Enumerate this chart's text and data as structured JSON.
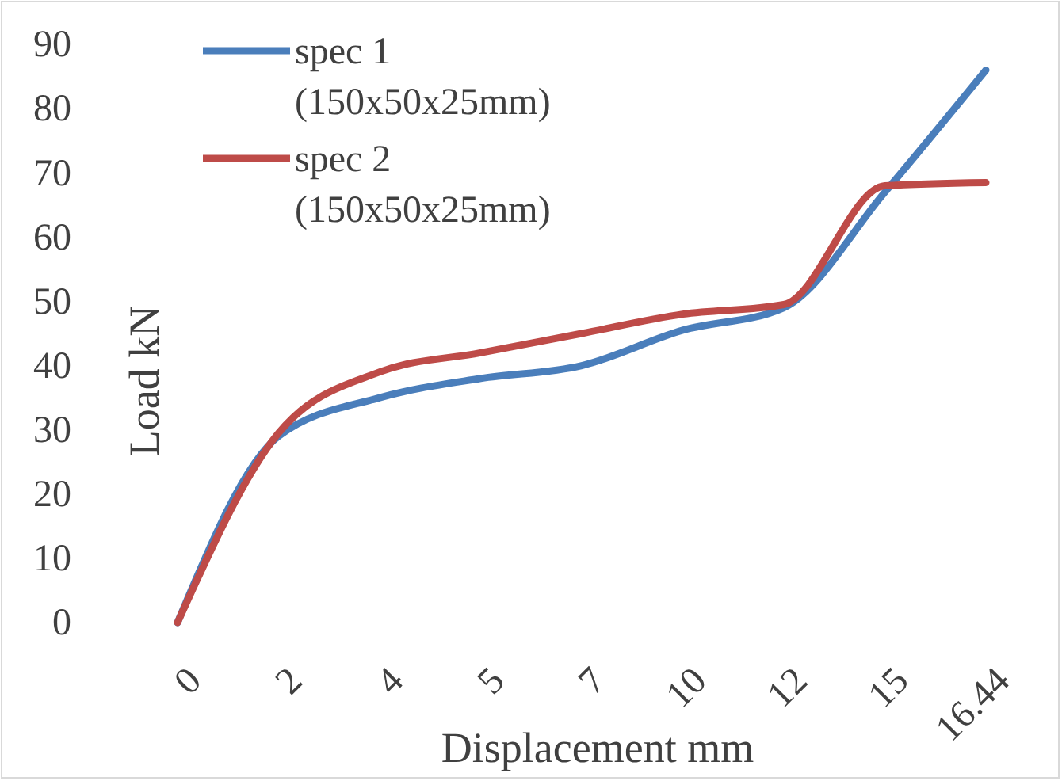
{
  "chart_data": {
    "type": "line",
    "xlabel": "Displacement mm",
    "ylabel": "Load kN",
    "categories": [
      "0",
      "2",
      "4",
      "5",
      "7",
      "10",
      "12",
      "15",
      "16.44"
    ],
    "ylim": [
      0,
      90
    ],
    "yticks": [
      0,
      10,
      20,
      30,
      40,
      50,
      60,
      70,
      80,
      90
    ],
    "grid": false,
    "legend": "top left",
    "marker": "none",
    "line_style": "solid",
    "series": [
      {
        "name": "spec 1 (150x50x25mm)",
        "color": "#4a7ebb",
        "values": [
          0,
          29,
          35,
          38,
          40,
          45.5,
          49,
          67,
          86
        ]
      },
      {
        "name": "spec 2 (150x50x25mm)",
        "color": "#be4b48",
        "values": [
          0,
          29.5,
          39,
          42,
          45,
          48,
          49.5,
          68,
          68.5
        ]
      }
    ]
  }
}
